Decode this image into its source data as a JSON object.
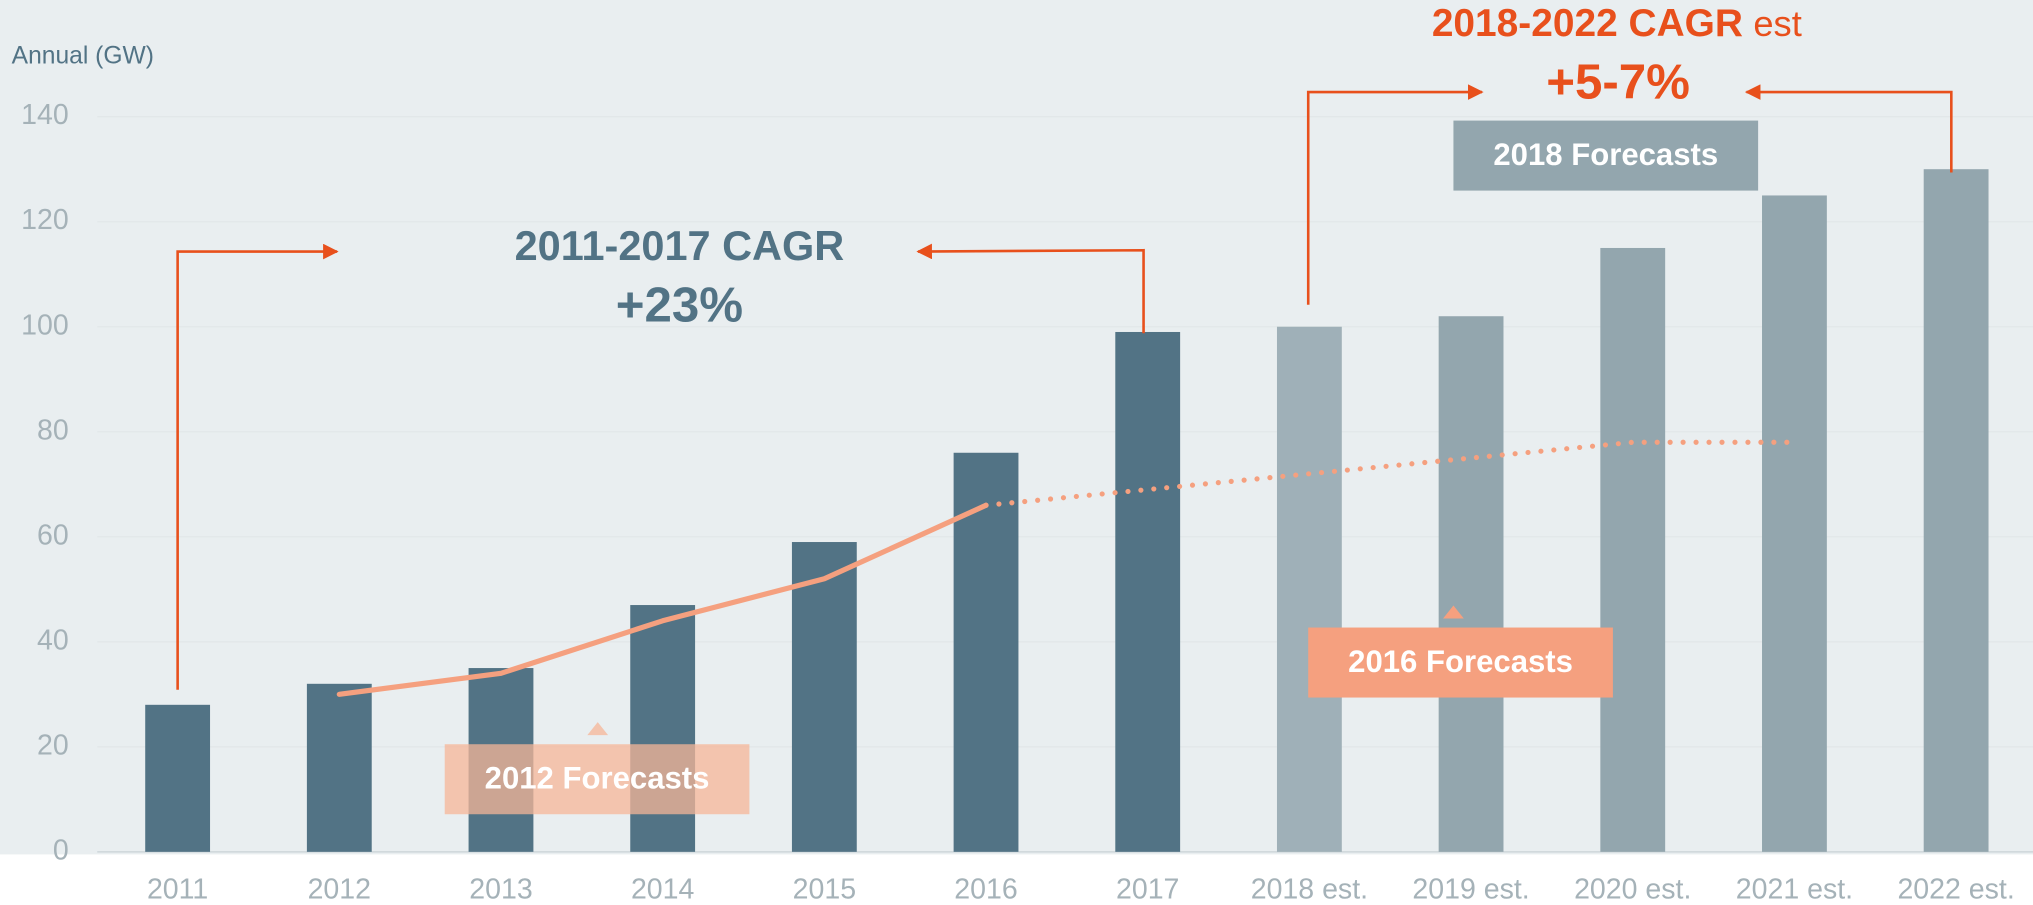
{
  "chart_data": {
    "type": "bar",
    "y_label": "Annual (GW)",
    "categories": [
      "2011",
      "2012",
      "2013",
      "2014",
      "2015",
      "2016",
      "2017",
      "2018 est.",
      "2019 est.",
      "2020 est.",
      "2021 est.",
      "2022 est."
    ],
    "values": [
      28,
      32,
      35,
      47,
      59,
      76,
      99,
      100,
      102,
      115,
      125,
      130
    ],
    "colors": [
      "#527385",
      "#527385",
      "#527385",
      "#527385",
      "#527385",
      "#527385",
      "#527385",
      "#9fb0b8",
      "#93a6ae",
      "#93a6ae",
      "#93a6ae",
      "#93a6ae"
    ],
    "lines": [
      {
        "name": "2012 Forecasts",
        "color": "#f5a07f",
        "style": "solid",
        "values": [
          null,
          30,
          34,
          44,
          52,
          66,
          null,
          null,
          null,
          null,
          null,
          null
        ]
      },
      {
        "name": "2016 Forecasts",
        "color": "#f5a07f",
        "style": "dotted",
        "values": [
          null,
          null,
          null,
          null,
          null,
          66,
          69,
          72,
          75,
          78,
          78,
          null
        ]
      }
    ],
    "annotations": [
      "2011-2017 CAGR",
      "+23%",
      "2018-2022 CAGR",
      "est",
      "+5-7%",
      "2018 Forecasts"
    ],
    "ylim": [
      0,
      140
    ],
    "yticks": [
      0,
      20,
      40,
      60,
      80,
      100,
      120,
      140
    ],
    "grid": true
  }
}
